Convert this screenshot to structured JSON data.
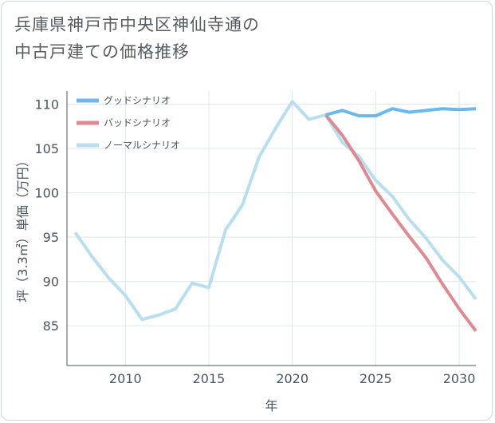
{
  "title_lines": [
    "兵庫県神戸市中央区神仙寺通の",
    "中古戸建ての価格推移"
  ],
  "chart_data": {
    "type": "line",
    "title": "兵庫県神戸市中央区神仙寺通の中古戸建ての価格推移",
    "xlabel": "年",
    "ylabel": "坪（3.3㎡）単価（万円）",
    "xlim": [
      2006.5,
      2031
    ],
    "ylim": [
      80.5,
      111.5
    ],
    "xticks": [
      2010,
      2015,
      2020,
      2025,
      2030
    ],
    "yticks": [
      85,
      90,
      95,
      100,
      105,
      110
    ],
    "x_tick_labels": [
      "2010",
      "2015",
      "2020",
      "2025",
      "2030"
    ],
    "y_tick_labels": [
      "85",
      "90",
      "95",
      "100",
      "105",
      "110"
    ],
    "legend_position": "top-left",
    "series": [
      {
        "name": "グッドシナリオ",
        "color": "#6cb8ee",
        "x": [
          2022,
          2023,
          2024,
          2025,
          2026,
          2027,
          2028,
          2029,
          2030,
          2031
        ],
        "y": [
          108.8,
          109.3,
          108.7,
          108.7,
          109.5,
          109.1,
          109.3,
          109.5,
          109.4,
          109.5
        ]
      },
      {
        "name": "バッドシナリオ",
        "color": "#dd8a93",
        "x": [
          2022,
          2023,
          2024,
          2025,
          2026,
          2027,
          2028,
          2029,
          2030,
          2031
        ],
        "y": [
          108.8,
          106.5,
          103.6,
          100.2,
          97.6,
          95.1,
          92.7,
          89.7,
          86.9,
          84.4
        ]
      },
      {
        "name": "ノーマルシナリオ",
        "color": "#b9deee",
        "x": [
          2007,
          2008,
          2009,
          2010,
          2011,
          2012,
          2013,
          2014,
          2015,
          2016,
          2017,
          2018,
          2019,
          2020,
          2021,
          2022,
          2023,
          2024,
          2025,
          2026,
          2027,
          2028,
          2029,
          2030,
          2031
        ],
        "y": [
          95.5,
          92.8,
          90.4,
          88.4,
          85.7,
          86.2,
          86.9,
          89.8,
          89.3,
          95.8,
          98.6,
          104.0,
          107.3,
          110.3,
          108.3,
          108.8,
          105.7,
          104.1,
          101.4,
          99.6,
          97.0,
          94.9,
          92.4,
          90.5,
          88.0
        ]
      }
    ]
  }
}
